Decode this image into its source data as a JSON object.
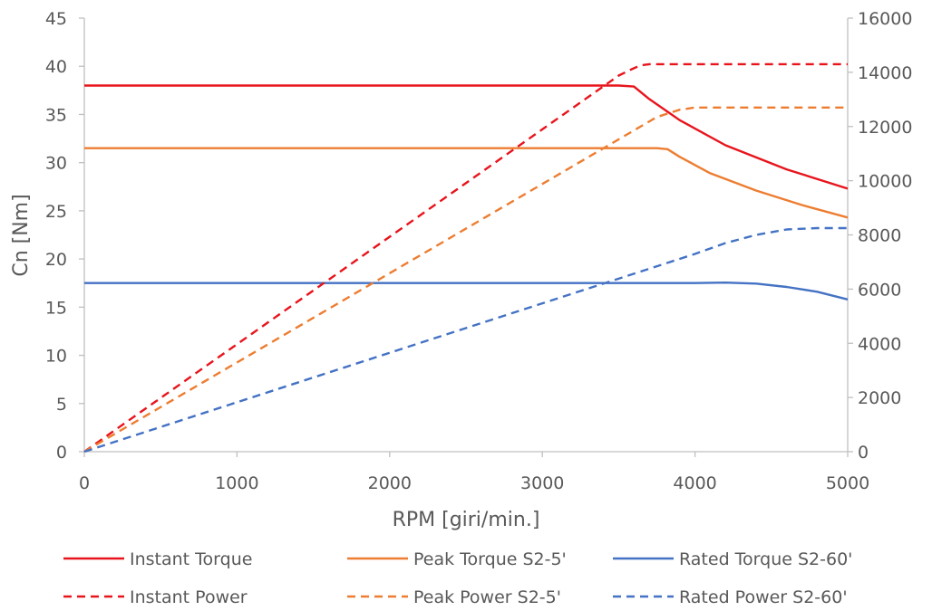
{
  "chart_data": {
    "type": "line",
    "xlabel": "RPM [giri/min.]",
    "ylabel": "Cn [Nm]",
    "y2label": "",
    "xlim": [
      0,
      5000
    ],
    "ylim": [
      0,
      45
    ],
    "y2lim": [
      0,
      16000
    ],
    "x_ticks": [
      0,
      1000,
      2000,
      3000,
      4000,
      5000
    ],
    "y_ticks": [
      0,
      5,
      10,
      15,
      20,
      25,
      30,
      35,
      40,
      45
    ],
    "y2_ticks": [
      0,
      2000,
      4000,
      6000,
      8000,
      10000,
      12000,
      14000,
      16000
    ],
    "grid": false,
    "legend_position": "bottom",
    "series": [
      {
        "name": "Instant Torque",
        "axis": "left",
        "style": "solid",
        "color": "#e8141c",
        "x": [
          0,
          3500,
          3600,
          3700,
          3900,
          4200,
          4600,
          5000
        ],
        "y": [
          38,
          38,
          37.9,
          36.6,
          34.4,
          31.8,
          29.3,
          27.3
        ]
      },
      {
        "name": "Peak Torque S2-5'",
        "axis": "left",
        "style": "solid",
        "color": "#ed7d31",
        "x": [
          0,
          3750,
          3820,
          3900,
          4100,
          4400,
          4700,
          5000
        ],
        "y": [
          31.5,
          31.5,
          31.4,
          30.6,
          28.9,
          27.1,
          25.6,
          24.3
        ]
      },
      {
        "name": "Rated Torque S2-60'",
        "axis": "left",
        "style": "solid",
        "color": "#4472c4",
        "x": [
          0,
          4000,
          4200,
          4400,
          4600,
          4800,
          5000
        ],
        "y": [
          17.5,
          17.5,
          17.55,
          17.45,
          17.1,
          16.6,
          15.8
        ]
      },
      {
        "name": "Instant Power",
        "axis": "right",
        "style": "dashed",
        "color": "#e8141c",
        "x": [
          0,
          3500,
          3580,
          3640,
          3700,
          5000
        ],
        "y": [
          0,
          13880,
          14100,
          14250,
          14300,
          14300
        ]
      },
      {
        "name": "Peak Power S2-5'",
        "axis": "right",
        "style": "dashed",
        "color": "#ed7d31",
        "x": [
          0,
          3750,
          3900,
          4000,
          5000
        ],
        "y": [
          0,
          12350,
          12620,
          12700,
          12700
        ]
      },
      {
        "name": "Rated Power S2-60'",
        "axis": "right",
        "style": "dashed",
        "color": "#4472c4",
        "x": [
          0,
          4000,
          4200,
          4400,
          4600,
          4800,
          5000
        ],
        "y": [
          0,
          7300,
          7700,
          8000,
          8200,
          8250,
          8250
        ]
      }
    ],
    "colors": {
      "axis": "#bfbfbf",
      "text": "#595959"
    }
  }
}
